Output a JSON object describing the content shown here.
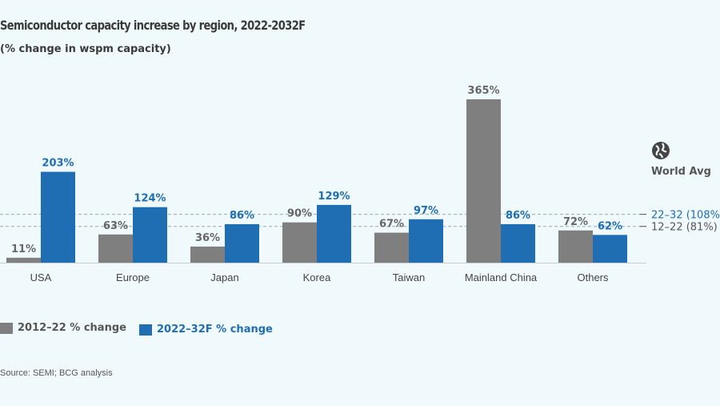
{
  "header": {
    "title": "Semiconductor capacity increase by region, 2022-2032F",
    "subtitle": "(% change in wspm capacity)"
  },
  "colors": {
    "gray": "#7f7f7f",
    "blue": "#1f6db3",
    "axis": "#c8cdd0",
    "dash": "#8fa9b8"
  },
  "icon": "globe-icon",
  "chart_data": {
    "type": "bar",
    "categories": [
      "USA",
      "Europe",
      "Japan",
      "Korea",
      "Taiwan",
      "Mainland China",
      "Others"
    ],
    "series": [
      {
        "name": "2012–22 % change",
        "values": [
          11,
          63,
          36,
          90,
          67,
          365,
          72
        ],
        "labels": [
          "11%",
          "63%",
          "36%",
          "90%",
          "67%",
          "365%",
          "72%"
        ]
      },
      {
        "name": "2022–32F % change",
        "values": [
          203,
          124,
          86,
          129,
          97,
          86,
          62
        ],
        "labels": [
          "203%",
          "124%",
          "86%",
          "129%",
          "97%",
          "86%",
          "62%"
        ]
      }
    ],
    "reference_lines": [
      {
        "label": "22–32 (108%)",
        "value": 108
      },
      {
        "label": "12–22 (81%)",
        "value": 81
      }
    ],
    "reference_title": "World Avg",
    "ylim": [
      0,
      365
    ],
    "legend_position": "bottom-left"
  },
  "footer": {
    "source": "Source: SEMI; BCG analysis"
  }
}
